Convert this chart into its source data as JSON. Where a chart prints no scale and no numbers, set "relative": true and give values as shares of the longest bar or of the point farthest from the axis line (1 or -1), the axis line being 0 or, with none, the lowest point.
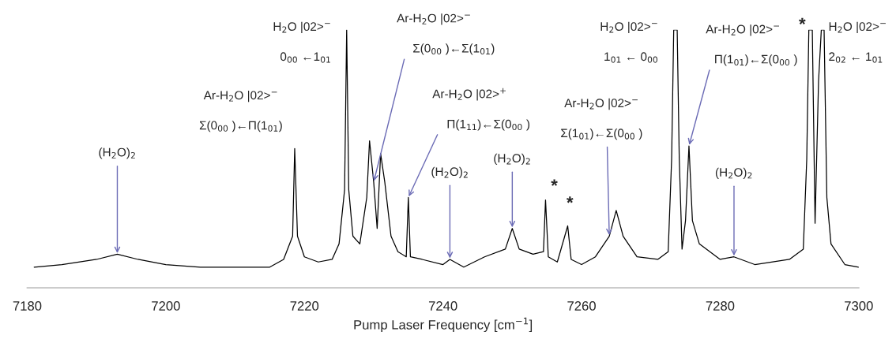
{
  "chart_data": {
    "type": "line",
    "relative": true,
    "xlabel": "Pump Laser Frequency [cm$^{−1}$]",
    "xlim": [
      7180,
      7300
    ],
    "xticks": [
      7180,
      7200,
      7220,
      7240,
      7260,
      7280,
      7300
    ],
    "x": [
      7181,
      7185,
      7190,
      7193,
      7196,
      7200,
      7205,
      7210,
      7215,
      7217,
      7218.3,
      7218.6,
      7219,
      7220,
      7222,
      7224,
      7225,
      7225.8,
      7226.1,
      7226.4,
      7227,
      7228,
      7229,
      7229.4,
      7230,
      7230.5,
      7231,
      7231.6,
      7232.5,
      7233.5,
      7234.7,
      7235,
      7235.3,
      7237,
      7240,
      7241,
      7243,
      7246,
      7249,
      7250,
      7251,
      7253,
      7254.5,
      7254.8,
      7255.2,
      7256.5,
      7258,
      7258.5,
      7260,
      7262,
      7264,
      7265,
      7266,
      7268,
      7271,
      7272.5,
      7273,
      7273.3,
      7273.8,
      7274.1,
      7274.5,
      7275,
      7275.5,
      7276,
      7277,
      7280,
      7282,
      7285,
      7290,
      7292,
      7292.5,
      7292.8,
      7293.3,
      7293.7,
      7294.2,
      7294.6,
      7295,
      7295.4,
      7296,
      7298,
      7300
    ],
    "series": [
      {
        "color": "#000000",
        "values": [
          0.08,
          0.09,
          0.11,
          0.13,
          0.11,
          0.09,
          0.08,
          0.08,
          0.08,
          0.11,
          0.2,
          0.54,
          0.2,
          0.12,
          0.1,
          0.11,
          0.17,
          0.38,
          1.0,
          0.38,
          0.2,
          0.17,
          0.35,
          0.57,
          0.41,
          0.23,
          0.52,
          0.41,
          0.2,
          0.14,
          0.12,
          0.35,
          0.12,
          0.11,
          0.09,
          0.11,
          0.08,
          0.12,
          0.15,
          0.23,
          0.15,
          0.13,
          0.14,
          0.34,
          0.12,
          0.1,
          0.24,
          0.11,
          0.09,
          0.12,
          0.2,
          0.3,
          0.2,
          0.12,
          0.11,
          0.14,
          0.5,
          1.0,
          1.0,
          0.5,
          0.15,
          0.26,
          0.55,
          0.26,
          0.17,
          0.11,
          0.12,
          0.09,
          0.11,
          0.15,
          0.5,
          1.0,
          1.0,
          0.25,
          0.8,
          1.0,
          1.0,
          0.35,
          0.17,
          0.09,
          0.08
        ]
      }
    ],
    "annotations": [
      {
        "text": "(H$_{2}$O)$_{2}$",
        "x": 7193,
        "y": 0.13
      },
      "Ar-H$_{2}$O |02>$^{−}$",
      {
        "text": "Σ(0$_{00}$ )←Π(1$_{01}$)",
        "x": 7218.6,
        "y": 0.54
      },
      {
        "text": "H$_{2}$O |02>$^{−}$",
        "x": 7226.1,
        "y": 1.0
      },
      "0$_{00}$ ←1$_{01}$",
      "Ar-H$_{2}$O |02>$^{−}$",
      {
        "text": "Σ(0$_{00}$ )←Σ(1$_{01}$)",
        "x": 7230,
        "y": 0.41
      },
      "Ar-H$_{2}$O |02>$^{+}$",
      {
        "text": "Π(1$_{11}$)←Σ(0$_{00}$ )",
        "x": 7235,
        "y": 0.35
      },
      {
        "text": "(H$_{2}$O)$_{2}$",
        "x": 7241,
        "y": 0.11
      },
      {
        "text": "(H$_{2}$O)$_{2}$",
        "x": 7250,
        "y": 0.23
      },
      {
        "text": "*",
        "x": 7254.8,
        "y": 0.34
      },
      {
        "text": "*",
        "x": 7258,
        "y": 0.24
      },
      "Ar-H$_{2}$O |02>$^{−}$",
      {
        "text": "Σ(1$_{01}$)←Σ(0$_{00}$ )",
        "x": 7264,
        "y": 0.2
      },
      {
        "text": "H$_{2}$O |02>$^{−}$",
        "x": 7273.3,
        "y": 1.0
      },
      "1$_{01}$ ← 0$_{00}$",
      "Ar-H$_{2}$O |02>$^{−}$",
      {
        "text": "Π(1$_{01}$)←Σ(0$_{00}$ )",
        "x": 7275.5,
        "y": 0.55
      },
      {
        "text": "(H$_{2}$O)$_{2}$",
        "x": 7282,
        "y": 0.12
      },
      {
        "text": "*",
        "x": 7292.8,
        "y": 1.0
      },
      {
        "text": "H$_{2}$O |02>$^{−}$",
        "x": 7295,
        "y": 1.0
      },
      "2$_{02}$ ← 1$_{01}$"
    ]
  }
}
